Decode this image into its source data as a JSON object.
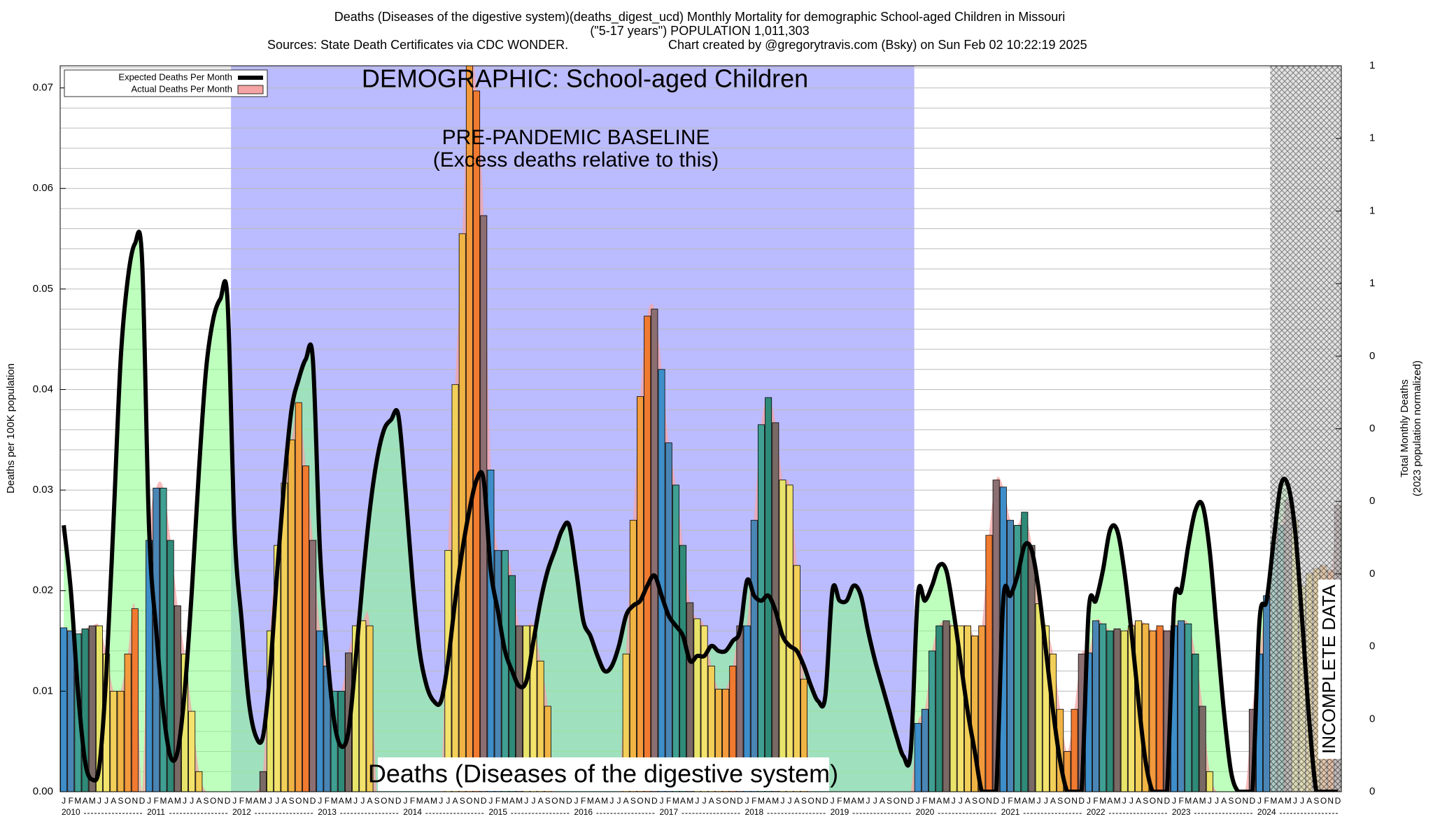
{
  "chart_data": {
    "type": "bar",
    "title": [
      "Deaths (Diseases of the digestive system)(deaths_digest_ucd) Monthly Mortality for demographic School-aged Children in Missouri",
      "(\"5-17 years\") POPULATION 1,011,303"
    ],
    "sources": "Sources: State Death Certificates via CDC WONDER.",
    "credit": "Chart created by @gregorytravis.com (Bsky) on Sun Feb 02 10:22:19 2025",
    "ylabel": "Deaths per 100K population",
    "y2label": [
      "Total Monthly Deaths",
      "(2023 population normalized)"
    ],
    "annotations": {
      "demographic": "DEMOGRAPHIC: School-aged Children",
      "baseline": "PRE-PANDEMIC BASELINE",
      "baseline_note": "(Excess deaths relative to this)",
      "cause": "Deaths (Diseases of the digestive system)",
      "incomplete": "INCOMPLETE DATA"
    },
    "month_labels": [
      "J",
      "F",
      "M",
      "A",
      "M",
      "J",
      "J",
      "A",
      "S",
      "O",
      "N",
      "D"
    ],
    "years": [
      "2010",
      "2011",
      "2012",
      "2013",
      "2014",
      "2015",
      "2016",
      "2017",
      "2018",
      "2019",
      "2020",
      "2021",
      "2022",
      "2023",
      "2024"
    ],
    "month_colors": [
      "#3d8ec9",
      "#4a86b5",
      "#3f9f92",
      "#2f8a78",
      "#7a6a66",
      "#e8e46a",
      "#f3e36c",
      "#f2cf58",
      "#f0b444",
      "#f29a3c",
      "#f07a30",
      "#8c6f72"
    ],
    "series": [
      {
        "name": "Expected Deaths Per Month",
        "color": "#000000",
        "values": [
          0.0265,
          0.02,
          0.01,
          0.003,
          0.0012,
          0.0025,
          0.012,
          0.027,
          0.043,
          0.051,
          0.0545,
          0.053,
          0.026,
          0.016,
          0.008,
          0.0035,
          0.004,
          0.01,
          0.02,
          0.032,
          0.042,
          0.047,
          0.049,
          0.049,
          0.026,
          0.017,
          0.009,
          0.0055,
          0.0055,
          0.012,
          0.022,
          0.031,
          0.038,
          0.041,
          0.043,
          0.043,
          0.024,
          0.014,
          0.007,
          0.0045,
          0.006,
          0.013,
          0.021,
          0.028,
          0.033,
          0.036,
          0.037,
          0.0375,
          0.03,
          0.021,
          0.014,
          0.0105,
          0.009,
          0.009,
          0.013,
          0.019,
          0.024,
          0.028,
          0.031,
          0.031,
          0.022,
          0.018,
          0.014,
          0.012,
          0.0105,
          0.011,
          0.015,
          0.019,
          0.022,
          0.024,
          0.026,
          0.0265,
          0.022,
          0.017,
          0.0155,
          0.0135,
          0.012,
          0.0125,
          0.0145,
          0.0175,
          0.0185,
          0.019,
          0.0205,
          0.0215,
          0.0195,
          0.0175,
          0.0165,
          0.0155,
          0.013,
          0.0135,
          0.0135,
          0.0145,
          0.014,
          0.014,
          0.015,
          0.016,
          0.021,
          0.0195,
          0.019,
          0.0195,
          0.018,
          0.0155,
          0.0145,
          0.014,
          0.0125,
          0.0105,
          0.009,
          0.0095,
          0.02,
          0.019,
          0.019,
          0.0205,
          0.0195,
          0.016,
          0.013,
          0.0105,
          0.008,
          0.0055,
          0.0035,
          0.004,
          0.0195,
          0.019,
          0.0205,
          0.0225,
          0.022,
          0.018,
          0.013,
          0.008,
          0.004,
          0,
          0,
          0,
          0.019,
          0.0195,
          0.0215,
          0.0245,
          0.024,
          0.02,
          0.014,
          0.008,
          0.003,
          0,
          0,
          0,
          0.018,
          0.019,
          0.022,
          0.026,
          0.026,
          0.022,
          0.016,
          0.009,
          0.003,
          0,
          0,
          0,
          0.0185,
          0.02,
          0.0245,
          0.028,
          0.0285,
          0.024,
          0.016,
          0.008,
          0.002,
          0,
          0,
          0,
          0.017,
          0.019,
          0.025,
          0.0305,
          0.0305,
          0.026,
          0.017,
          0.007,
          0,
          0,
          0,
          0
        ]
      },
      {
        "name": "Actual Deaths Per Month",
        "color": "#f4a4a4",
        "values": [
          0.0163,
          0.016,
          0.0157,
          0.0162,
          0.0165,
          0.0165,
          0.0137,
          0.01,
          0.01,
          0.0137,
          0.0182,
          0,
          0.025,
          0.0302,
          0.0302,
          0.025,
          0.0185,
          0.0137,
          0.008,
          0.002,
          0,
          0,
          0,
          0,
          0,
          0,
          0,
          0,
          0.002,
          0.016,
          0.0245,
          0.0307,
          0.035,
          0.0387,
          0.0324,
          0.025,
          0.016,
          0.0125,
          0.01,
          0.01,
          0.0138,
          0.0165,
          0.017,
          0.0165,
          0,
          0,
          0,
          0,
          0,
          0,
          0,
          0,
          0,
          0,
          0.024,
          0.0405,
          0.0555,
          0.0725,
          0.0697,
          0.0573,
          0.032,
          0.024,
          0.024,
          0.0215,
          0.0165,
          0.0165,
          0.0165,
          0.013,
          0.0085,
          0,
          0,
          0,
          0,
          0,
          0,
          0,
          0,
          0,
          0,
          0.0137,
          0.027,
          0.0393,
          0.0473,
          0.048,
          0.042,
          0.0347,
          0.0305,
          0.0245,
          0.0188,
          0.0172,
          0.0165,
          0.0125,
          0.0102,
          0.0102,
          0.0125,
          0.0165,
          0.0165,
          0.027,
          0.0365,
          0.0392,
          0.0367,
          0.031,
          0.0305,
          0.0225,
          0.0112,
          0,
          0,
          0,
          0,
          0,
          0,
          0,
          0,
          0,
          0,
          0,
          0,
          0,
          0,
          0,
          0.0068,
          0.0082,
          0.014,
          0.0165,
          0.017,
          0.0165,
          0.0165,
          0.0165,
          0.0155,
          0.0165,
          0.0255,
          0.031,
          0.0303,
          0.027,
          0.0265,
          0.0278,
          0.0245,
          0.0187,
          0.0165,
          0.0137,
          0.0082,
          0.004,
          0.0082,
          0.0137,
          0.0138,
          0.017,
          0.0167,
          0.016,
          0.0162,
          0.016,
          0.0165,
          0.017,
          0.0167,
          0.016,
          0.0165,
          0.016,
          0.0165,
          0.017,
          0.0167,
          0.0137,
          0.0085,
          0.002,
          0,
          0,
          0,
          0,
          0,
          0.0082,
          0.0137,
          0.0195,
          0.025,
          0.0265,
          0.029,
          0.027,
          0.0205,
          0.0217,
          0.0222,
          0.0225,
          0.022,
          0.0285
        ]
      }
    ],
    "expected_fill": "#88ff88",
    "baseline_color": "#bbbbff",
    "ylim": [
      0,
      0.0722
    ],
    "yticks": [
      {
        "value": 0,
        "label": "0.00"
      },
      0.01,
      0.02,
      0.03,
      0.04,
      0.05,
      0.06,
      0.07
    ],
    "yminor": 5,
    "y2lim": [
      0,
      1
    ],
    "y2ticks": [
      {
        "value": 0,
        "label": "0"
      },
      {
        "value": 0.1,
        "label": "0"
      },
      {
        "value": 0.2,
        "label": "0"
      },
      {
        "value": 0.3,
        "label": "0"
      },
      {
        "value": 0.4,
        "label": "0"
      },
      {
        "value": 0.5,
        "label": "0"
      },
      {
        "value": 0.6,
        "label": "0"
      },
      {
        "value": 0.7,
        "label": "1"
      },
      {
        "value": 0.8,
        "label": "1"
      },
      {
        "value": 0.9,
        "label": "1"
      },
      {
        "value": 1,
        "label": "1"
      }
    ],
    "grid": true,
    "legend": "top-left"
  }
}
